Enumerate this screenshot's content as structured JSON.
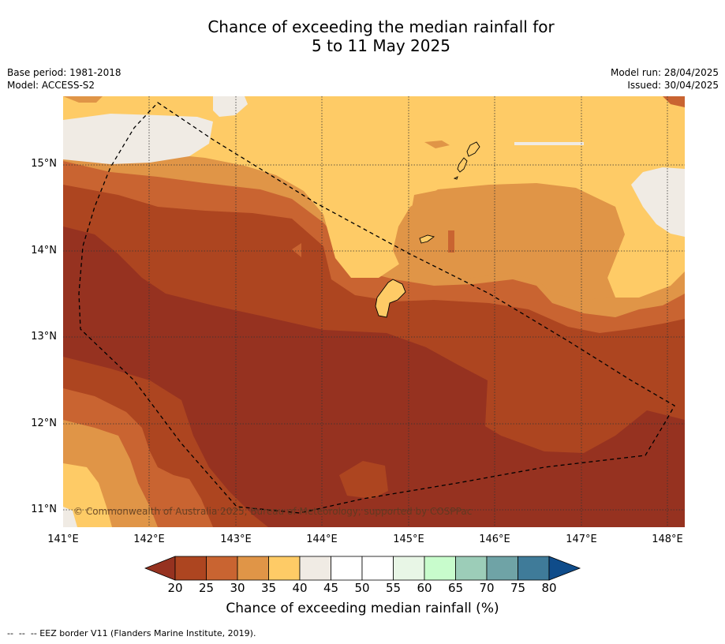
{
  "title_line1": "Chance of exceeding the median rainfall for",
  "title_line2": "5 to 11 May 2025",
  "meta": {
    "base_period": "Base period: 1981-2018",
    "model": "Model: ACCESS-S2",
    "model_run": "Model run: 28/04/2025",
    "issued": "Issued: 30/04/2025"
  },
  "map": {
    "lat_labels": [
      "15°N",
      "14°N",
      "13°N",
      "12°N",
      "11°N"
    ],
    "lon_labels": [
      "141°E",
      "142°E",
      "143°E",
      "144°E",
      "145°E",
      "146°E",
      "147°E",
      "148°E"
    ],
    "copyright": "© Commonwealth of Australia 2025, Bureau of Meteorology, supported by COSPPac",
    "colors": {
      "bin_lt20": "#963220",
      "bin_20_25": "#ad4520",
      "bin_25_30": "#c96431",
      "bin_30_35": "#e09547",
      "bin_35_40": "#fecb66",
      "bin_40_45": "#f0ebe4"
    }
  },
  "colorbar": {
    "ticks": [
      "20",
      "25",
      "30",
      "35",
      "40",
      "45",
      "50",
      "55",
      "60",
      "65",
      "70",
      "75",
      "80"
    ],
    "colors": [
      "#963220",
      "#ad4520",
      "#c96431",
      "#e09547",
      "#fecb66",
      "#f0ebe4",
      "#ffffff",
      "#ffffff",
      "#e8f6e6",
      "#c8fccc",
      "#9ccdb8",
      "#6fa3a6",
      "#3f7b99",
      "#0f4c8a"
    ],
    "title": "Chance of exceeding median rainfall (%)"
  },
  "footer": "--  --  -- EEZ border V11 (Flanders Marine Institute, 2019)."
}
